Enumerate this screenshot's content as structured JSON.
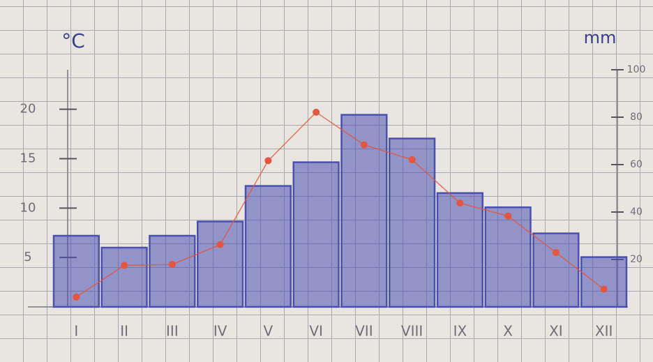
{
  "chart_data": {
    "type": "combo",
    "ylabel": "°C",
    "y2label": "mm",
    "categories": [
      "I",
      "II",
      "III",
      "IV",
      "V",
      "VI",
      "VII",
      "VIII",
      "IX",
      "X",
      "XI",
      "XII"
    ],
    "series": [
      {
        "kind": "bar",
        "axis": "y2",
        "color": "#4a4fb0",
        "values": [
          30,
          25,
          30,
          36,
          51,
          61,
          81,
          71,
          48,
          42,
          31,
          21
        ]
      },
      {
        "kind": "line",
        "axis": "y",
        "color": "#e5553f",
        "values": [
          1,
          4.2,
          4.3,
          6.3,
          14.8,
          19.7,
          16.4,
          14.9,
          10.5,
          9.2,
          5.5,
          1.8
        ]
      }
    ],
    "ylim": [
      0,
      24
    ],
    "yticks": [
      5,
      10,
      15,
      20
    ],
    "y2lim": [
      0,
      100
    ],
    "y2ticks": [
      20,
      40,
      60,
      80,
      100
    ],
    "grid": true
  }
}
